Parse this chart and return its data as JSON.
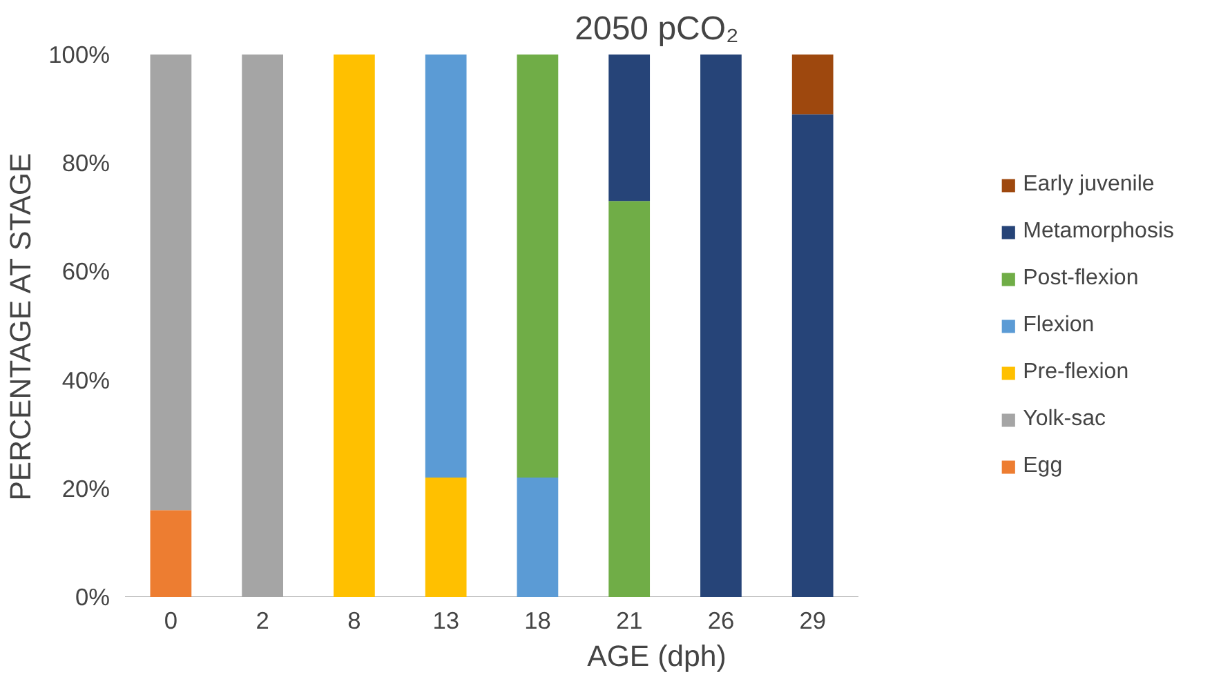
{
  "chart_data": {
    "type": "bar",
    "stacked": true,
    "title": "2050 pCO₂",
    "xlabel": "AGE (dph)",
    "ylabel": "PERCENTAGE AT STAGE",
    "categories": [
      "0",
      "2",
      "8",
      "13",
      "18",
      "21",
      "26",
      "29"
    ],
    "series": [
      {
        "name": "Egg",
        "color": "#ed7d31",
        "values": [
          16,
          0,
          0,
          0,
          0,
          0,
          0,
          0
        ]
      },
      {
        "name": "Yolk-sac",
        "color": "#a5a5a5",
        "values": [
          84,
          100,
          0,
          0,
          0,
          0,
          0,
          0
        ]
      },
      {
        "name": "Pre-flexion",
        "color": "#ffc000",
        "values": [
          0,
          0,
          100,
          22,
          0,
          0,
          0,
          0
        ]
      },
      {
        "name": "Flexion",
        "color": "#5b9bd5",
        "values": [
          0,
          0,
          0,
          78,
          22,
          0,
          0,
          0
        ]
      },
      {
        "name": "Post-flexion",
        "color": "#70ad47",
        "values": [
          0,
          0,
          0,
          0,
          78,
          73,
          0,
          0
        ]
      },
      {
        "name": "Metamorphosis",
        "color": "#264478",
        "values": [
          0,
          0,
          0,
          0,
          0,
          27,
          100,
          89
        ]
      },
      {
        "name": "Early juvenile",
        "color": "#9e480e",
        "values": [
          0,
          0,
          0,
          0,
          0,
          0,
          0,
          11
        ]
      }
    ],
    "ylim": [
      0,
      100
    ],
    "yticks": [
      {
        "value": 0,
        "label": "0%"
      },
      {
        "value": 20,
        "label": "20%"
      },
      {
        "value": 40,
        "label": "40%"
      },
      {
        "value": 60,
        "label": "60%"
      },
      {
        "value": 80,
        "label": "80%"
      },
      {
        "value": 100,
        "label": "100%"
      }
    ],
    "grid": false,
    "legend": "right"
  }
}
